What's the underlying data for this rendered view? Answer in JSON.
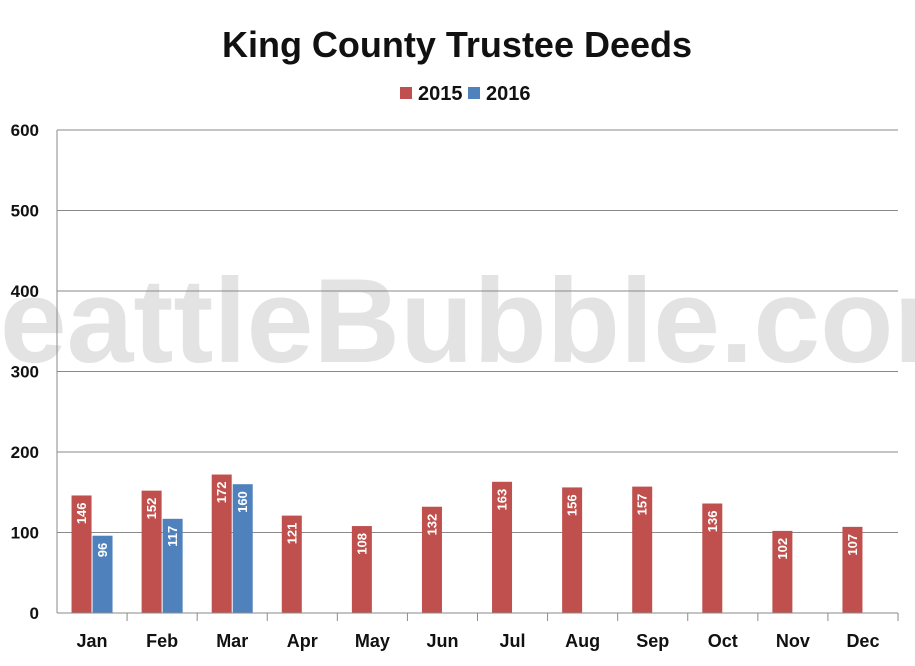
{
  "watermark": "SeattleBubble.com",
  "chart_data": {
    "type": "bar",
    "title": "King County Trustee Deeds",
    "xlabel": "",
    "ylabel": "",
    "categories": [
      "Jan",
      "Feb",
      "Mar",
      "Apr",
      "May",
      "Jun",
      "Jul",
      "Aug",
      "Sep",
      "Oct",
      "Nov",
      "Dec"
    ],
    "series": [
      {
        "name": "2015",
        "color": "#c0504d",
        "values": [
          146,
          152,
          172,
          121,
          108,
          132,
          163,
          156,
          157,
          136,
          102,
          107
        ]
      },
      {
        "name": "2016",
        "color": "#4f81bd",
        "values": [
          96,
          117,
          160,
          null,
          null,
          null,
          null,
          null,
          null,
          null,
          null,
          null
        ]
      }
    ],
    "ylim": [
      0,
      600
    ],
    "yticks": [
      0,
      100,
      200,
      300,
      400,
      500,
      600
    ],
    "grid": true,
    "legend": "top-center",
    "data_labels": true
  }
}
